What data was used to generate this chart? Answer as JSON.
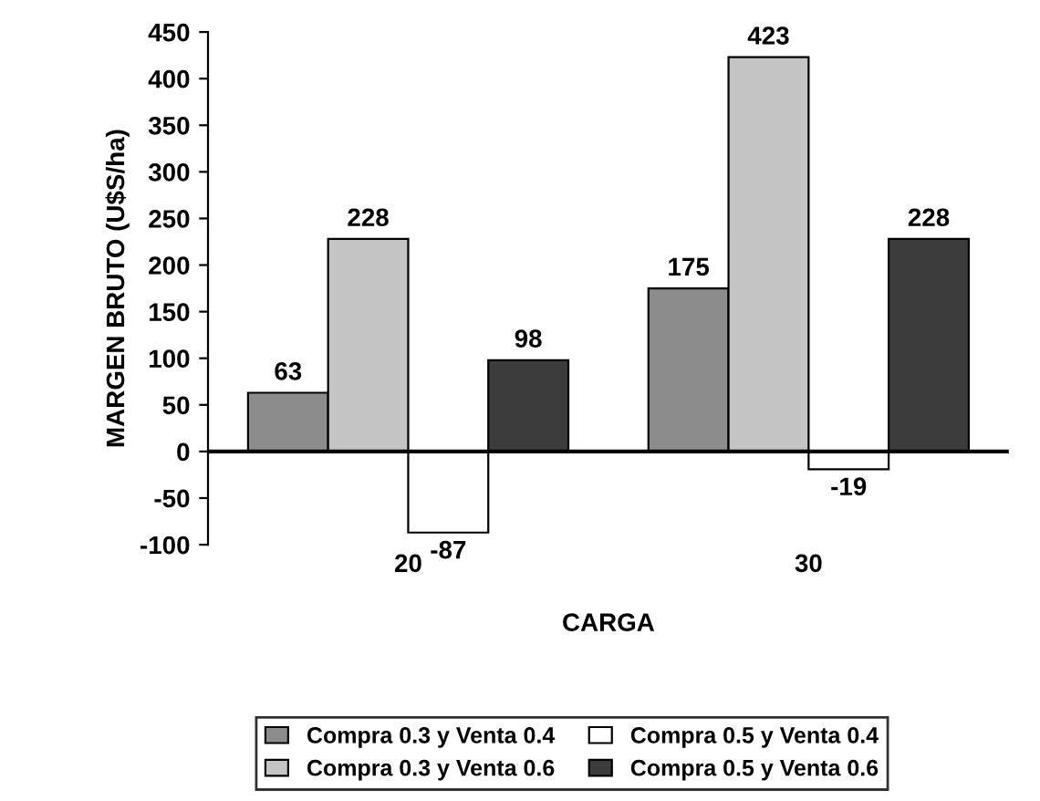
{
  "chart_data": {
    "type": "bar",
    "xlabel": "CARGA",
    "ylabel": "MARGEN BRUTO (U$S/ha)",
    "categories": [
      "20",
      "30"
    ],
    "series": [
      {
        "name": "Compra 0.3 y Venta 0.4",
        "color": "#8c8c8c",
        "values": [
          63,
          175
        ]
      },
      {
        "name": "Compra 0.3 y Venta 0.6",
        "color": "#c4c4c4",
        "values": [
          228,
          423
        ]
      },
      {
        "name": "Compra 0.5 y Venta 0.4",
        "color": "#ffffff",
        "values": [
          -87,
          -19
        ]
      },
      {
        "name": "Compra 0.5 y Venta 0.6",
        "color": "#3c3c3c",
        "values": [
          98,
          228
        ]
      }
    ],
    "ylim": [
      -100,
      450
    ],
    "yticks": [
      -100,
      -50,
      0,
      50,
      100,
      150,
      200,
      250,
      300,
      350,
      400,
      450
    ],
    "ref_lines": [
      {
        "axis": "y",
        "value": 0
      }
    ],
    "data_labels": true,
    "grid": false,
    "legend": "bottom"
  }
}
